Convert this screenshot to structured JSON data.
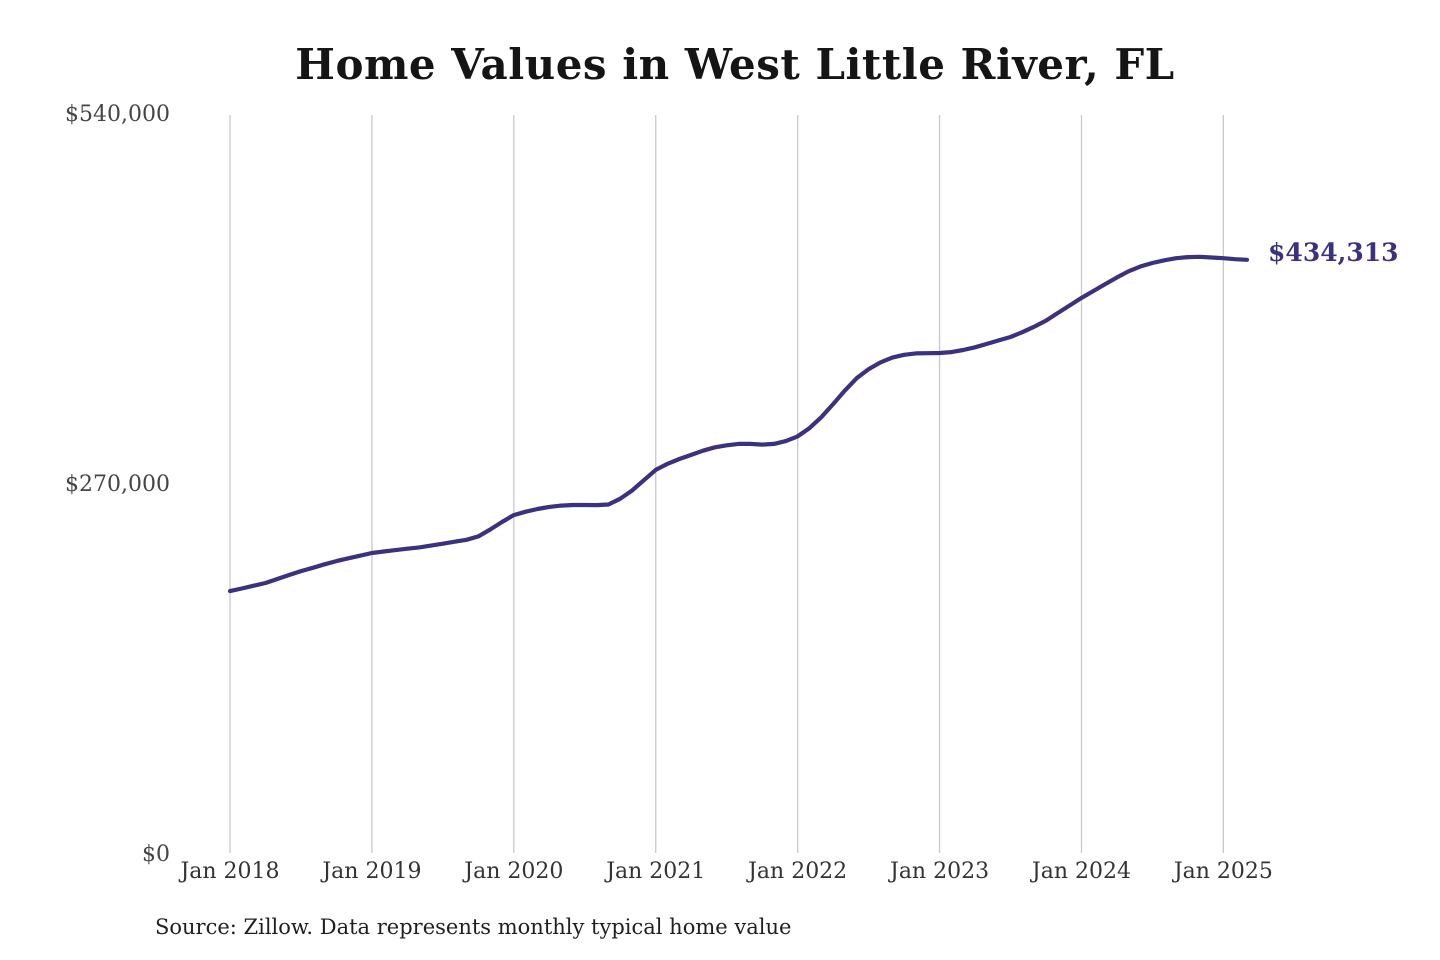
{
  "chart": {
    "title": "Home Values in West Little River, FL",
    "source_note": "Source: Zillow. Data represents monthly typical home value",
    "end_value_label": "$434,313",
    "colors": {
      "line": "#3a327f",
      "end_label_text": "#3a327f",
      "gridline": "#c9c9c9",
      "y_axis_text": "#454545",
      "x_axis_text": "#333333",
      "title_text": "#151515",
      "background": "#ffffff"
    }
  },
  "chart_data": {
    "type": "line",
    "title": "Home Values in West Little River, FL",
    "xlabel": "",
    "ylabel": "",
    "grid": "vertical-only",
    "legend": "none",
    "y_axis": {
      "min": 0,
      "max": 540000,
      "ticks": [
        {
          "value": 0,
          "label": "$0"
        },
        {
          "value": 270000,
          "label": "$270,000"
        },
        {
          "value": 540000,
          "label": "$540,000"
        }
      ]
    },
    "x_axis": {
      "tick_labels": [
        "Jan 2018",
        "Jan 2019",
        "Jan 2020",
        "Jan 2021",
        "Jan 2022",
        "Jan 2023",
        "Jan 2024",
        "Jan 2025"
      ]
    },
    "series": [
      {
        "name": "Monthly typical home value",
        "final_value": 434313,
        "final_label": "$434,313",
        "months": [
          "Jan 2018",
          "Feb 2018",
          "Mar 2018",
          "Apr 2018",
          "May 2018",
          "Jun 2018",
          "Jul 2018",
          "Aug 2018",
          "Sep 2018",
          "Oct 2018",
          "Nov 2018",
          "Dec 2018",
          "Jan 2019",
          "Feb 2019",
          "Mar 2019",
          "Apr 2019",
          "May 2019",
          "Jun 2019",
          "Jul 2019",
          "Aug 2019",
          "Sep 2019",
          "Oct 2019",
          "Nov 2019",
          "Dec 2019",
          "Jan 2020",
          "Feb 2020",
          "Mar 2020",
          "Apr 2020",
          "May 2020",
          "Jun 2020",
          "Jul 2020",
          "Aug 2020",
          "Sep 2020",
          "Oct 2020",
          "Nov 2020",
          "Dec 2020",
          "Jan 2021",
          "Feb 2021",
          "Mar 2021",
          "Apr 2021",
          "May 2021",
          "Jun 2021",
          "Jul 2021",
          "Aug 2021",
          "Sep 2021",
          "Oct 2021",
          "Nov 2021",
          "Dec 2021",
          "Jan 2022",
          "Feb 2022",
          "Mar 2022",
          "Apr 2022",
          "May 2022",
          "Jun 2022",
          "Jul 2022",
          "Aug 2022",
          "Sep 2022",
          "Oct 2022",
          "Nov 2022",
          "Dec 2022",
          "Jan 2023",
          "Feb 2023",
          "Mar 2023",
          "Apr 2023",
          "May 2023",
          "Jun 2023",
          "Jul 2023",
          "Aug 2023",
          "Sep 2023",
          "Oct 2023",
          "Nov 2023",
          "Dec 2023",
          "Jan 2024",
          "Feb 2024",
          "Mar 2024",
          "Apr 2024",
          "May 2024",
          "Jun 2024",
          "Jul 2024",
          "Aug 2024",
          "Sep 2024",
          "Oct 2024",
          "Nov 2024",
          "Dec 2024",
          "Jan 2025",
          "Feb 2025",
          "Mar 2025"
        ],
        "values": [
          192600,
          194500,
          196500,
          198500,
          201400,
          204300,
          207200,
          209600,
          212100,
          214500,
          216500,
          218400,
          220400,
          221500,
          222500,
          223500,
          224500,
          225800,
          227200,
          228600,
          230000,
          232500,
          237500,
          243000,
          248000,
          250500,
          252500,
          254000,
          255000,
          255400,
          255400,
          255300,
          255800,
          260000,
          266000,
          273500,
          281000,
          285500,
          289000,
          292000,
          295000,
          297500,
          299000,
          300000,
          300000,
          299500,
          300000,
          302000,
          305500,
          311500,
          319500,
          329000,
          339000,
          348000,
          354500,
          359500,
          363000,
          365000,
          366000,
          366200,
          366300,
          367000,
          368500,
          370500,
          373000,
          375500,
          378000,
          381500,
          385500,
          390000,
          395500,
          401000,
          406500,
          411500,
          416500,
          421500,
          426000,
          429500,
          432000,
          434000,
          435500,
          436300,
          436500,
          436000,
          435500,
          434800,
          434313
        ]
      }
    ]
  }
}
